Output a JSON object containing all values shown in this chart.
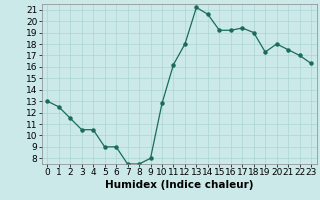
{
  "x": [
    0,
    1,
    2,
    3,
    4,
    5,
    6,
    7,
    8,
    9,
    10,
    11,
    12,
    13,
    14,
    15,
    16,
    17,
    18,
    19,
    20,
    21,
    22,
    23
  ],
  "y": [
    13,
    12.5,
    11.5,
    10.5,
    10.5,
    9,
    9,
    7.5,
    7.5,
    8,
    12.8,
    16.2,
    18,
    21.2,
    20.6,
    19.2,
    19.2,
    19.4,
    19,
    17.3,
    18,
    17.5,
    17,
    16.3
  ],
  "line_color": "#1a6b5a",
  "marker_color": "#1a6b5a",
  "bg_color": "#cce9e9",
  "grid_color": "#aad4d4",
  "xlabel": "Humidex (Indice chaleur)",
  "xlim": [
    -0.5,
    23.5
  ],
  "ylim": [
    7.5,
    21.5
  ],
  "yticks": [
    8,
    9,
    10,
    11,
    12,
    13,
    14,
    15,
    16,
    17,
    18,
    19,
    20,
    21
  ],
  "xticks": [
    0,
    1,
    2,
    3,
    4,
    5,
    6,
    7,
    8,
    9,
    10,
    11,
    12,
    13,
    14,
    15,
    16,
    17,
    18,
    19,
    20,
    21,
    22,
    23
  ],
  "xlabel_fontsize": 7.5,
  "tick_fontsize": 6.5
}
